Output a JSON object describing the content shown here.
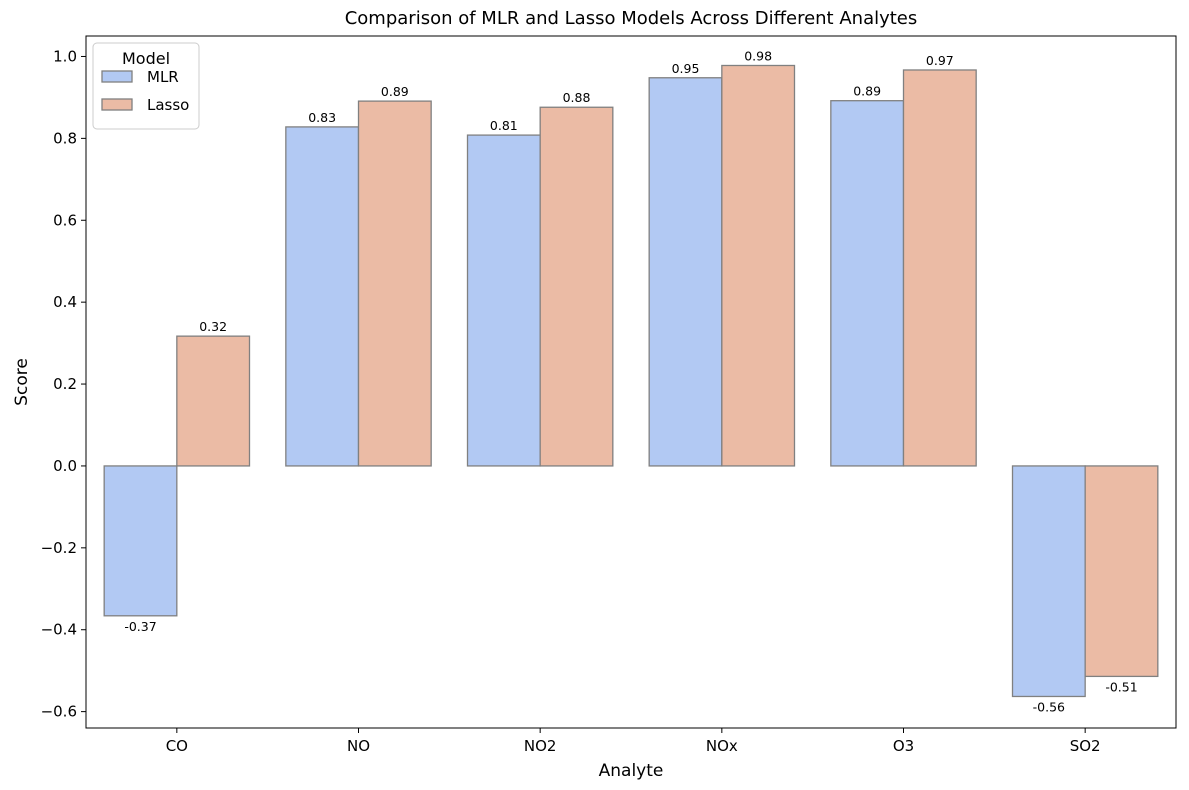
{
  "chart_data": {
    "type": "bar",
    "title": "Comparison of MLR and Lasso Models Across Different Analytes",
    "xlabel": "Analyte",
    "ylabel": "Score",
    "categories": [
      "CO",
      "NO",
      "NO2",
      "NOx",
      "O3",
      "SO2"
    ],
    "series": [
      {
        "name": "MLR",
        "color": "#b2c9f3",
        "values": [
          -0.366,
          0.828,
          0.808,
          0.948,
          0.892,
          -0.563
        ],
        "labels": [
          "-0.37",
          "0.83",
          "0.81",
          "0.95",
          "0.89",
          "-0.56"
        ]
      },
      {
        "name": "Lasso",
        "color": "#ebbba5",
        "values": [
          0.317,
          0.891,
          0.876,
          0.978,
          0.967,
          -0.514
        ],
        "labels": [
          "0.32",
          "0.89",
          "0.88",
          "0.98",
          "0.97",
          "-0.51"
        ]
      }
    ],
    "ylim": [
      -0.64,
      1.05
    ],
    "yticks": [
      -0.6,
      -0.4,
      -0.2,
      0.0,
      0.2,
      0.4,
      0.6,
      0.8,
      1.0
    ],
    "ytick_labels": [
      "−0.6",
      "−0.4",
      "−0.2",
      "0.0",
      "0.2",
      "0.4",
      "0.6",
      "0.8",
      "1.0"
    ],
    "grid": false,
    "legend": {
      "title": "Model",
      "placement": "top-left"
    }
  }
}
